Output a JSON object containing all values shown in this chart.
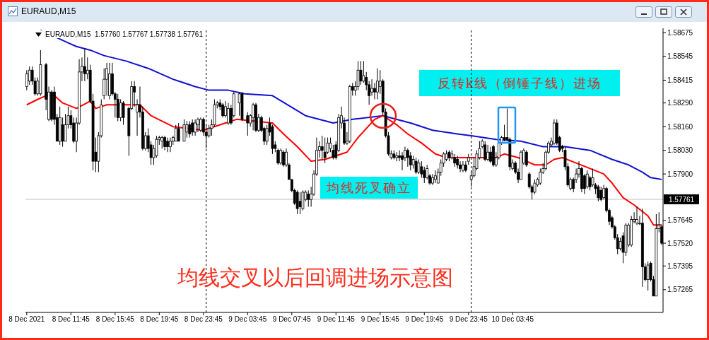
{
  "chart_data": {
    "type": "candlestick",
    "title": "EURAUD,M15  1.57760 1.57767 1.57738 1.57761",
    "color": "#000000",
    "x": [
      "2021-12-08T07:45",
      "2021-12-08T08:00",
      "2021-12-08T08:15",
      "2021-12-08T08:30",
      "2021-12-08T08:45",
      "2021-12-08T09:00",
      "2021-12-08T09:30",
      "2021-12-08T09:45",
      "2021-12-08T10:00",
      "2021-12-08T10:15",
      "2021-12-08T10:30",
      "2021-12-08T10:45",
      "2021-12-08T11:00",
      "2021-12-08T11:15",
      "2021-12-08T11:30",
      "2021-12-08T11:45",
      "2021-12-08T12:00",
      "2021-12-08T12:15",
      "2021-12-08T12:30",
      "2021-12-08T12:45",
      "2021-12-08T13:00",
      "2021-12-08T13:15",
      "2021-12-08T13:30",
      "2021-12-08T13:45",
      "2021-12-08T14:00",
      "2021-12-08T14:15",
      "2021-12-08T14:30",
      "2021-12-08T14:45",
      "2021-12-08T15:00",
      "2021-12-08T15:15",
      "2021-12-08T15:30",
      "2021-12-08T15:45",
      "2021-12-08T16:00",
      "2021-12-08T16:15",
      "2021-12-08T16:30",
      "2021-12-08T17:00",
      "2021-12-08T17:15",
      "2021-12-08T17:30",
      "2021-12-08T17:45",
      "2021-12-08T18:00",
      "2021-12-08T18:15",
      "2021-12-08T18:30",
      "2021-12-08T18:45",
      "2021-12-08T19:00",
      "2021-12-08T19:15",
      "2021-12-08T19:30",
      "2021-12-08T19:45",
      "2021-12-08T20:00",
      "2021-12-08T20:15",
      "2021-12-08T20:30",
      "2021-12-08T20:45",
      "2021-12-08T21:00",
      "2021-12-08T21:15",
      "2021-12-08T21:30",
      "2021-12-08T22:00",
      "2021-12-08T22:15",
      "2021-12-08T22:30",
      "2021-12-08T22:45",
      "2021-12-08T23:00",
      "2021-12-08T23:15",
      "2021-12-08T23:30",
      "2021-12-08T23:45",
      "2021-12-09T00:00",
      "2021-12-09T00:15",
      "2021-12-09T00:30",
      "2021-12-09T00:45",
      "2021-12-09T01:00",
      "2021-12-09T01:15",
      "2021-12-09T01:30",
      "2021-12-09T01:45",
      "2021-12-09T02:00",
      "2021-12-09T02:15",
      "2021-12-09T02:30",
      "2021-12-09T03:00",
      "2021-12-09T03:15",
      "2021-12-09T03:45",
      "2021-12-09T04:00",
      "2021-12-09T04:15",
      "2021-12-09T04:30",
      "2021-12-09T04:45",
      "2021-12-09T05:00",
      "2021-12-09T05:15",
      "2021-12-09T05:30",
      "2021-12-09T05:45",
      "2021-12-09T06:00",
      "2021-12-09T06:15",
      "2021-12-09T06:30",
      "2021-12-09T06:45",
      "2021-12-09T07:00",
      "2021-12-09T07:15",
      "2021-12-09T07:30",
      "2021-12-09T07:45",
      "2021-12-09T08:00",
      "2021-12-09T08:15",
      "2021-12-09T08:30",
      "2021-12-09T08:45",
      "2021-12-09T09:00",
      "2021-12-09T09:15",
      "2021-12-09T09:30",
      "2021-12-09T09:45",
      "2021-12-09T10:00",
      "2021-12-09T10:15",
      "2021-12-09T10:30",
      "2021-12-09T10:45",
      "2021-12-09T11:00",
      "2021-12-09T11:15",
      "2021-12-09T11:30",
      "2021-12-09T11:45",
      "2021-12-09T12:00",
      "2021-12-09T12:15",
      "2021-12-09T12:30",
      "2021-12-09T12:45",
      "2021-12-09T13:00",
      "2021-12-09T13:15",
      "2021-12-09T13:30",
      "2021-12-09T13:45",
      "2021-12-09T14:00",
      "2021-12-09T14:15",
      "2021-12-09T14:30",
      "2021-12-09T14:45",
      "2021-12-09T15:00",
      "2021-12-09T15:15",
      "2021-12-09T15:30",
      "2021-12-09T15:45",
      "2021-12-09T16:00",
      "2021-12-09T16:15",
      "2021-12-09T16:30",
      "2021-12-09T16:45",
      "2021-12-09T17:00",
      "2021-12-09T17:15",
      "2021-12-09T17:30",
      "2021-12-09T17:45",
      "2021-12-09T18:00",
      "2021-12-09T18:15",
      "2021-12-09T18:30",
      "2021-12-09T18:45",
      "2021-12-09T19:00",
      "2021-12-09T19:15",
      "2021-12-09T19:30",
      "2021-12-09T19:45",
      "2021-12-09T20:00",
      "2021-12-09T20:15",
      "2021-12-09T20:30",
      "2021-12-09T20:45",
      "2021-12-09T21:00",
      "2021-12-09T21:15",
      "2021-12-09T21:30",
      "2021-12-09T21:45",
      "2021-12-09T22:00",
      "2021-12-09T22:15",
      "2021-12-09T22:30",
      "2021-12-09T22:45",
      "2021-12-09T23:00",
      "2021-12-09T23:15",
      "2021-12-09T23:30",
      "2021-12-09T23:45",
      "2021-12-10T00:00",
      "2021-12-10T00:15",
      "2021-12-10T00:30",
      "2021-12-10T00:45",
      "2021-12-10T01:00",
      "2021-12-10T01:15",
      "2021-12-10T01:30",
      "2021-12-10T01:45",
      "2021-12-10T02:00",
      "2021-12-10T02:15",
      "2021-12-10T02:30",
      "2021-12-10T02:45",
      "2021-12-10T03:00",
      "2021-12-10T03:15",
      "2021-12-10T03:30",
      "2021-12-10T03:45",
      "2021-12-10T04:00",
      "2021-12-10T04:15",
      "2021-12-10T04:30",
      "2021-12-10T04:45",
      "2021-12-10T05:00",
      "2021-12-10T05:15",
      "2021-12-10T05:30",
      "2021-12-10T05:45",
      "2021-12-10T06:00",
      "2021-12-10T06:15",
      "2021-12-10T06:30",
      "2021-12-10T06:45",
      "2021-12-10T07:00",
      "2021-12-10T07:15",
      "2021-12-10T07:30",
      "2021-12-10T07:45",
      "2021-12-10T08:00",
      "2021-12-10T08:15",
      "2021-12-10T08:30",
      "2021-12-10T08:45",
      "2021-12-10T09:00",
      "2021-12-10T09:15",
      "2021-12-10T09:30",
      "2021-12-10T09:45",
      "2021-12-10T10:00",
      "2021-12-10T10:15",
      "2021-12-10T10:30",
      "2021-12-10T10:45",
      "2021-12-10T11:00",
      "2021-12-10T11:15",
      "2021-12-10T11:30",
      "2021-12-10T11:45",
      "2021-12-10T12:00",
      "2021-12-10T12:15",
      "2021-12-10T12:30",
      "2021-12-10T12:45",
      "2021-12-10T13:00",
      "2021-12-10T13:15",
      "2021-12-10T13:30",
      "2021-12-10T13:45",
      "2021-12-10T14:00",
      "2021-12-10T14:15",
      "2021-12-10T14:30",
      "2021-12-10T14:45",
      "2021-12-10T15:00",
      "2021-12-10T15:15",
      "2021-12-10T15:30",
      "2021-12-10T15:45",
      "2021-12-10T16:00",
      "2021-12-10T16:15",
      "2021-12-10T16:30",
      "2021-12-10T16:45",
      "2021-12-10T17:00",
      "2021-12-10T17:15"
    ],
    "ohlc": [
      [
        1.5838,
        1.5847,
        1.5836,
        1.5845
      ],
      [
        1.5841,
        1.5849,
        1.5839,
        1.5847
      ],
      [
        1.5847,
        1.5849,
        1.5839,
        1.5841
      ],
      [
        1.5841,
        1.5843,
        1.5833,
        1.5834
      ],
      [
        1.5834,
        1.5843,
        1.5833,
        1.5841
      ],
      [
        1.5834,
        1.5858,
        1.5833,
        1.585
      ],
      [
        1.585,
        1.5851,
        1.5825,
        1.5831
      ],
      [
        1.582,
        1.5838,
        1.5819,
        1.5835
      ],
      [
        1.5835,
        1.5836,
        1.5819,
        1.582
      ],
      [
        1.5835,
        1.5838,
        1.5817,
        1.582
      ],
      [
        1.5821,
        1.5823,
        1.5808,
        1.5808
      ],
      [
        1.5808,
        1.5827,
        1.5806,
        1.5821
      ],
      [
        1.5817,
        1.5821,
        1.5805,
        1.5808
      ],
      [
        1.5808,
        1.5823,
        1.5808,
        1.5817
      ],
      [
        1.5817,
        1.5827,
        1.5815,
        1.5822
      ],
      [
        1.5822,
        1.5825,
        1.5815,
        1.5817
      ],
      [
        1.5818,
        1.5821,
        1.5807,
        1.5808
      ],
      [
        1.5808,
        1.5821,
        1.5802,
        1.5818
      ],
      [
        1.5818,
        1.5853,
        1.5817,
        1.5846
      ],
      [
        1.5846,
        1.5854,
        1.5841,
        1.5849
      ],
      [
        1.5849,
        1.5859,
        1.5841,
        1.5845
      ],
      [
        1.5845,
        1.5854,
        1.5842,
        1.5847
      ],
      [
        1.5847,
        1.585,
        1.5829,
        1.583
      ],
      [
        1.583,
        1.5834,
        1.5792,
        1.5797
      ],
      [
        1.5802,
        1.581,
        1.5791,
        1.5797
      ],
      [
        1.5797,
        1.5813,
        1.5791,
        1.5811
      ],
      [
        1.5811,
        1.5831,
        1.581,
        1.5828
      ],
      [
        1.5833,
        1.5848,
        1.5831,
        1.5842
      ],
      [
        1.5842,
        1.5851,
        1.5833,
        1.5848
      ],
      [
        1.5833,
        1.5851,
        1.5831,
        1.5845
      ],
      [
        1.5845,
        1.5851,
        1.5833,
        1.5834
      ],
      [
        1.5834,
        1.5835,
        1.5821,
        1.5831
      ],
      [
        1.5831,
        1.5834,
        1.5819,
        1.5821
      ],
      [
        1.5821,
        1.5831,
        1.5819,
        1.5829
      ],
      [
        1.5829,
        1.583,
        1.5817,
        1.5821
      ],
      [
        1.5826,
        1.5827,
        1.58,
        1.5811
      ],
      [
        1.5826,
        1.5841,
        1.5825,
        1.5838
      ],
      [
        1.5838,
        1.5841,
        1.5827,
        1.5835
      ],
      [
        1.5824,
        1.5831,
        1.5811,
        1.5828
      ],
      [
        1.5828,
        1.5838,
        1.5821,
        1.5824
      ],
      [
        1.5824,
        1.5827,
        1.5803,
        1.5804
      ],
      [
        1.5804,
        1.5813,
        1.5803,
        1.5811
      ],
      [
        1.5811,
        1.5815,
        1.5802,
        1.5804
      ],
      [
        1.5806,
        1.5808,
        1.5795,
        1.5799
      ],
      [
        1.5799,
        1.5806,
        1.5795,
        1.5804
      ],
      [
        1.58,
        1.5811,
        1.5799,
        1.5809
      ],
      [
        1.5809,
        1.5811,
        1.5806,
        1.581
      ],
      [
        1.5808,
        1.5811,
        1.5804,
        1.581
      ],
      [
        1.581,
        1.5811,
        1.5803,
        1.5805
      ],
      [
        1.5808,
        1.581,
        1.5802,
        1.5805
      ],
      [
        1.5805,
        1.581,
        1.5802,
        1.5808
      ],
      [
        1.5808,
        1.5811,
        1.5806,
        1.581
      ],
      [
        1.5808,
        1.5817,
        1.5808,
        1.5815
      ],
      [
        1.5815,
        1.5818,
        1.5808,
        1.5808
      ],
      [
        1.5808,
        1.582,
        1.5808,
        1.5817
      ],
      [
        1.5813,
        1.5819,
        1.581,
        1.5817
      ],
      [
        1.5817,
        1.5819,
        1.581,
        1.5812
      ],
      [
        1.5818,
        1.582,
        1.5811,
        1.5813
      ],
      [
        1.5813,
        1.582,
        1.5811,
        1.5818
      ],
      [
        1.5817,
        1.5821,
        1.5813,
        1.582
      ],
      [
        1.5814,
        1.5821,
        1.5813,
        1.582
      ],
      [
        1.582,
        1.5821,
        1.5811,
        1.5813
      ],
      [
        1.5813,
        1.5817,
        1.5804,
        1.5811
      ],
      [
        1.5811,
        1.5817,
        1.581,
        1.5815
      ],
      [
        1.5815,
        1.582,
        1.5811,
        1.5817
      ],
      [
        1.5817,
        1.5831,
        1.5816,
        1.5828
      ],
      [
        1.5828,
        1.583,
        1.5826,
        1.5829
      ],
      [
        1.5829,
        1.5831,
        1.5825,
        1.5827
      ],
      [
        1.5828,
        1.5829,
        1.5821,
        1.5822
      ],
      [
        1.5822,
        1.583,
        1.5821,
        1.5827
      ],
      [
        1.5818,
        1.5829,
        1.5817,
        1.5826
      ],
      [
        1.5826,
        1.5828,
        1.5817,
        1.5818
      ],
      [
        1.5822,
        1.5835,
        1.5821,
        1.5834
      ],
      [
        1.5829,
        1.5835,
        1.5822,
        1.5834
      ],
      [
        1.5834,
        1.5835,
        1.5819,
        1.582
      ],
      [
        1.5822,
        1.5824,
        1.5811,
        1.5818
      ],
      [
        1.5818,
        1.5823,
        1.5816,
        1.5822
      ],
      [
        1.5821,
        1.5829,
        1.5814,
        1.5828
      ],
      [
        1.5828,
        1.5829,
        1.5813,
        1.5814
      ],
      [
        1.5814,
        1.5823,
        1.5813,
        1.5821
      ],
      [
        1.5821,
        1.5822,
        1.5813,
        1.5814
      ],
      [
        1.5815,
        1.5816,
        1.5806,
        1.5808
      ],
      [
        1.5808,
        1.5817,
        1.5806,
        1.5815
      ],
      [
        1.5818,
        1.5821,
        1.5811,
        1.5813
      ],
      [
        1.5816,
        1.5817,
        1.5801,
        1.5804
      ],
      [
        1.5806,
        1.5808,
        1.5802,
        1.5804
      ],
      [
        1.5803,
        1.5804,
        1.5795,
        1.5796
      ],
      [
        1.5796,
        1.5804,
        1.5795,
        1.5803
      ],
      [
        1.5802,
        1.5803,
        1.5794,
        1.5795
      ],
      [
        1.5795,
        1.5804,
        1.5794,
        1.5802
      ],
      [
        1.5795,
        1.5796,
        1.5787,
        1.5787
      ],
      [
        1.5787,
        1.5787,
        1.578,
        1.5781
      ],
      [
        1.5781,
        1.5782,
        1.5773,
        1.5774
      ],
      [
        1.578,
        1.5781,
        1.5768,
        1.5771
      ],
      [
        1.5775,
        1.578,
        1.5768,
        1.5772
      ],
      [
        1.5771,
        1.5781,
        1.577,
        1.578
      ],
      [
        1.5776,
        1.5781,
        1.5775,
        1.578
      ],
      [
        1.5779,
        1.5781,
        1.5772,
        1.5776
      ],
      [
        1.5776,
        1.5783,
        1.5772,
        1.5779
      ],
      [
        1.5779,
        1.5792,
        1.5778,
        1.579
      ],
      [
        1.579,
        1.581,
        1.5789,
        1.5803
      ],
      [
        1.5803,
        1.5808,
        1.5799,
        1.5805
      ],
      [
        1.5805,
        1.5811,
        1.5798,
        1.5803
      ],
      [
        1.5802,
        1.581,
        1.5796,
        1.5799
      ],
      [
        1.5802,
        1.581,
        1.5801,
        1.5807
      ],
      [
        1.5804,
        1.581,
        1.5802,
        1.5807
      ],
      [
        1.5803,
        1.5806,
        1.5798,
        1.5799
      ],
      [
        1.5806,
        1.5808,
        1.5798,
        1.5799
      ],
      [
        1.5803,
        1.5823,
        1.5802,
        1.5821
      ],
      [
        1.5818,
        1.5827,
        1.5815,
        1.5822
      ],
      [
        1.5818,
        1.5821,
        1.5806,
        1.5807
      ],
      [
        1.5807,
        1.5813,
        1.5806,
        1.5808
      ],
      [
        1.5808,
        1.5839,
        1.5807,
        1.5838
      ],
      [
        1.5838,
        1.584,
        1.5833,
        1.5836
      ],
      [
        1.5836,
        1.5841,
        1.5833,
        1.5838
      ],
      [
        1.5838,
        1.5852,
        1.5836,
        1.5847
      ],
      [
        1.5847,
        1.5852,
        1.5839,
        1.5841
      ],
      [
        1.5841,
        1.5852,
        1.584,
        1.5844
      ],
      [
        1.5843,
        1.5846,
        1.5836,
        1.5839
      ],
      [
        1.5839,
        1.5841,
        1.5828,
        1.5833
      ],
      [
        1.5835,
        1.5842,
        1.5833,
        1.5837
      ],
      [
        1.5837,
        1.584,
        1.5831,
        1.5835
      ],
      [
        1.5835,
        1.5848,
        1.5831,
        1.5841
      ],
      [
        1.5838,
        1.5847,
        1.5834,
        1.5841
      ],
      [
        1.5841,
        1.5842,
        1.5822,
        1.5824
      ],
      [
        1.5824,
        1.5826,
        1.581,
        1.5811
      ],
      [
        1.5811,
        1.5813,
        1.58,
        1.5801
      ],
      [
        1.5799,
        1.5803,
        1.5798,
        1.5801
      ],
      [
        1.5801,
        1.5803,
        1.5798,
        1.5799
      ],
      [
        1.5799,
        1.5802,
        1.5797,
        1.58
      ],
      [
        1.58,
        1.5803,
        1.5797,
        1.5799
      ],
      [
        1.58,
        1.5802,
        1.5792,
        1.5798
      ],
      [
        1.5799,
        1.5805,
        1.5797,
        1.5803
      ],
      [
        1.5803,
        1.5804,
        1.5794,
        1.5799
      ],
      [
        1.58,
        1.5802,
        1.5792,
        1.5795
      ],
      [
        1.5795,
        1.58,
        1.5793,
        1.5798
      ],
      [
        1.5797,
        1.5799,
        1.579,
        1.5791
      ],
      [
        1.5791,
        1.5798,
        1.579,
        1.5796
      ],
      [
        1.5794,
        1.5797,
        1.5788,
        1.579
      ],
      [
        1.5792,
        1.5794,
        1.5785,
        1.5788
      ],
      [
        1.5788,
        1.5795,
        1.5787,
        1.5793
      ],
      [
        1.5789,
        1.579,
        1.5784,
        1.5785
      ],
      [
        1.5785,
        1.579,
        1.5784,
        1.5788
      ],
      [
        1.5787,
        1.5792,
        1.5785,
        1.5789
      ],
      [
        1.5785,
        1.5793,
        1.5785,
        1.5791
      ],
      [
        1.5791,
        1.5798,
        1.5789,
        1.5796
      ],
      [
        1.5796,
        1.5802,
        1.5794,
        1.5801
      ],
      [
        1.5798,
        1.5803,
        1.5797,
        1.5801
      ],
      [
        1.5802,
        1.5803,
        1.5797,
        1.5799
      ],
      [
        1.5799,
        1.5803,
        1.5798,
        1.5801
      ],
      [
        1.5799,
        1.5801,
        1.5794,
        1.5796
      ],
      [
        1.5798,
        1.58,
        1.5793,
        1.5795
      ],
      [
        1.5795,
        1.5797,
        1.5791,
        1.5793
      ],
      [
        1.5792,
        1.5797,
        1.5791,
        1.5795
      ],
      [
        1.5795,
        1.5797,
        1.5791,
        1.5792
      ],
      [
        1.5797,
        1.5801,
        1.5795,
        1.5799
      ],
      [
        1.5787,
        1.5792,
        1.5783,
        1.5789
      ],
      [
        1.5789,
        1.5799,
        1.5788,
        1.5794
      ],
      [
        1.5793,
        1.5803,
        1.5792,
        1.5801
      ],
      [
        1.5799,
        1.5808,
        1.5798,
        1.5804
      ],
      [
        1.5805,
        1.5809,
        1.5804,
        1.5808
      ],
      [
        1.5806,
        1.5808,
        1.5797,
        1.5798
      ],
      [
        1.5798,
        1.5806,
        1.5797,
        1.5802
      ],
      [
        1.5802,
        1.5805,
        1.5796,
        1.5797
      ],
      [
        1.5805,
        1.5806,
        1.5794,
        1.5795
      ],
      [
        1.5795,
        1.5802,
        1.5794,
        1.5799
      ],
      [
        1.5799,
        1.5808,
        1.5798,
        1.5807
      ],
      [
        1.5807,
        1.5811,
        1.5806,
        1.581
      ],
      [
        1.581,
        1.5817,
        1.5808,
        1.5809
      ],
      [
        1.581,
        1.5826,
        1.5808,
        1.5809
      ],
      [
        1.5809,
        1.581,
        1.5792,
        1.5794
      ],
      [
        1.5793,
        1.5798,
        1.5792,
        1.5796
      ],
      [
        1.5796,
        1.5797,
        1.579,
        1.5791
      ],
      [
        1.5791,
        1.5793,
        1.5785,
        1.5787
      ],
      [
        1.5787,
        1.5803,
        1.5787,
        1.5802
      ],
      [
        1.5796,
        1.5804,
        1.5795,
        1.5803
      ],
      [
        1.5802,
        1.5803,
        1.5794,
        1.5795
      ],
      [
        1.579,
        1.5791,
        1.5782,
        1.5783
      ],
      [
        1.5783,
        1.5784,
        1.5776,
        1.578
      ],
      [
        1.578,
        1.5787,
        1.5779,
        1.5785
      ],
      [
        1.5784,
        1.5788,
        1.5783,
        1.5787
      ],
      [
        1.5785,
        1.5793,
        1.5784,
        1.5791
      ],
      [
        1.5791,
        1.5796,
        1.579,
        1.5793
      ],
      [
        1.5793,
        1.5803,
        1.5792,
        1.5802
      ],
      [
        1.5802,
        1.5808,
        1.5801,
        1.5807
      ],
      [
        1.5806,
        1.581,
        1.5805,
        1.5808
      ],
      [
        1.5807,
        1.582,
        1.5806,
        1.5818
      ],
      [
        1.5818,
        1.582,
        1.5806,
        1.5807
      ],
      [
        1.581,
        1.5811,
        1.5802,
        1.5803
      ],
      [
        1.5805,
        1.5806,
        1.5802,
        1.5804
      ],
      [
        1.5803,
        1.5805,
        1.5792,
        1.5794
      ],
      [
        1.5794,
        1.5796,
        1.5783,
        1.5784
      ],
      [
        1.5782,
        1.5788,
        1.5781,
        1.5787
      ],
      [
        1.5787,
        1.5788,
        1.578,
        1.5782
      ],
      [
        1.5787,
        1.5793,
        1.5785,
        1.579
      ],
      [
        1.579,
        1.5797,
        1.5788,
        1.5793
      ],
      [
        1.5793,
        1.5794,
        1.578,
        1.5782
      ],
      [
        1.5789,
        1.579,
        1.5779,
        1.5782
      ],
      [
        1.5783,
        1.5792,
        1.5782,
        1.579
      ],
      [
        1.5788,
        1.5789,
        1.5781,
        1.5783
      ],
      [
        1.5784,
        1.5793,
        1.5783,
        1.5788
      ],
      [
        1.5784,
        1.5785,
        1.5779,
        1.5782
      ],
      [
        1.5783,
        1.5784,
        1.5775,
        1.5777
      ],
      [
        1.5781,
        1.5783,
        1.5775,
        1.5776
      ],
      [
        1.5777,
        1.5784,
        1.5776,
        1.5782
      ],
      [
        1.5782,
        1.5783,
        1.5769,
        1.577
      ],
      [
        1.577,
        1.5771,
        1.5762,
        1.5764
      ],
      [
        1.5766,
        1.5767,
        1.576,
        1.5761
      ],
      [
        1.5761,
        1.5762,
        1.5754,
        1.5755
      ],
      [
        1.5755,
        1.5757,
        1.5746,
        1.5749
      ],
      [
        1.5749,
        1.5755,
        1.5748,
        1.5753
      ],
      [
        1.5756,
        1.5758,
        1.5741,
        1.5747
      ],
      [
        1.5747,
        1.5763,
        1.5745,
        1.5762
      ],
      [
        1.5751,
        1.5763,
        1.575,
        1.5762
      ],
      [
        1.5751,
        1.5767,
        1.575,
        1.5765
      ],
      [
        1.5764,
        1.5769,
        1.5763,
        1.5765
      ],
      [
        1.5763,
        1.5772,
        1.5762,
        1.5765
      ],
      [
        1.5763,
        1.5767,
        1.5762,
        1.5763
      ],
      [
        1.5763,
        1.5771,
        1.5728,
        1.5739
      ],
      [
        1.5739,
        1.5741,
        1.5731,
        1.5732
      ],
      [
        1.5732,
        1.5742,
        1.5726,
        1.574
      ],
      [
        1.5741,
        1.5742,
        1.5731,
        1.5732
      ],
      [
        1.5732,
        1.5734,
        1.5723,
        1.5723
      ],
      [
        1.5723,
        1.5768,
        1.5723,
        1.576
      ],
      [
        1.576,
        1.5769,
        1.5758,
        1.5762
      ],
      [
        1.5761,
        1.5762,
        1.5751,
        1.5752
      ]
    ],
    "series": [
      {
        "type": "line",
        "color": "#1010d0",
        "x": [
          "2021-12-08T09:00",
          "2021-12-08T11:30",
          "2021-12-08T12:15",
          "2021-12-08T13:30",
          "2021-12-08T14:45",
          "2021-12-08T16:45",
          "2021-12-08T18:45",
          "2021-12-08T21:00",
          "2021-12-08T23:00",
          "2021-12-09T00:15",
          "2021-12-09T02:00",
          "2021-12-09T03:30",
          "2021-12-09T06:00",
          "2021-12-09T09:00",
          "2021-12-09T11:30",
          "2021-12-09T13:15",
          "2021-12-09T16:00",
          "2021-12-09T18:30",
          "2021-12-09T20:30",
          "2021-12-09T22:45",
          "2021-12-10T00:00",
          "2021-12-10T02:15",
          "2021-12-10T04:30",
          "2021-12-10T06:30",
          "2021-12-10T08:30",
          "2021-12-10T10:45",
          "2021-12-10T12:45",
          "2021-12-10T14:15",
          "2021-12-10T15:30",
          "2021-12-10T16:15",
          "2021-12-10T17:15"
        ],
        "values": [
          1.5869,
          1.5862,
          1.586,
          1.5858,
          1.5855,
          1.5852,
          1.5848,
          1.5842,
          1.5838,
          1.5836,
          1.5836,
          1.5834,
          1.5833,
          1.5822,
          1.5818,
          1.582,
          1.5822,
          1.5818,
          1.5814,
          1.5812,
          1.5811,
          1.5809,
          1.5808,
          1.5805,
          1.5805,
          1.5803,
          1.5798,
          1.5795,
          1.5791,
          1.5788,
          1.5787
        ]
      },
      {
        "type": "line",
        "color": "#ff0000",
        "x": [
          "2021-12-08T07:45",
          "2021-12-08T08:45",
          "2021-12-08T09:30",
          "2021-12-08T10:15",
          "2021-12-08T11:00",
          "2021-12-08T12:15",
          "2021-12-08T13:30",
          "2021-12-08T14:00",
          "2021-12-08T15:00",
          "2021-12-08T16:00",
          "2021-12-08T18:00",
          "2021-12-08T19:00",
          "2021-12-08T20:00",
          "2021-12-08T21:00",
          "2021-12-08T23:45",
          "2021-12-09T01:45",
          "2021-12-09T02:45",
          "2021-12-09T06:00",
          "2021-12-09T07:00",
          "2021-12-09T08:15",
          "2021-12-09T09:30",
          "2021-12-09T10:45",
          "2021-12-09T12:45",
          "2021-12-09T13:45",
          "2021-12-09T15:15",
          "2021-12-09T16:00",
          "2021-12-09T17:15",
          "2021-12-09T18:15",
          "2021-12-09T19:30",
          "2021-12-09T20:45",
          "2021-12-09T21:45",
          "2021-12-10T00:15",
          "2021-12-10T02:15",
          "2021-12-10T03:00",
          "2021-12-10T04:15",
          "2021-12-10T05:00",
          "2021-12-10T05:45",
          "2021-12-10T06:45",
          "2021-12-10T07:30",
          "2021-12-10T08:15",
          "2021-12-10T09:30",
          "2021-12-10T10:45",
          "2021-12-10T12:00",
          "2021-12-10T12:45",
          "2021-12-10T13:45",
          "2021-12-10T14:45",
          "2021-12-10T16:00",
          "2021-12-10T16:30",
          "2021-12-10T17:15"
        ],
        "values": [
          1.5828,
          1.5831,
          1.5833,
          1.5833,
          1.5829,
          1.5826,
          1.583,
          1.5826,
          1.5828,
          null,
          1.5828,
          1.5822,
          1.5819,
          1.5816,
          1.5814,
          1.5818,
          1.582,
          1.5818,
          1.5812,
          1.5805,
          1.5797,
          1.5798,
          1.5802,
          1.581,
          1.582,
          1.5822,
          1.5817,
          1.5812,
          1.5807,
          1.5801,
          1.5799,
          1.5799,
          1.5799,
          1.5801,
          1.5799,
          1.5797,
          1.5795,
          1.5795,
          1.5798,
          1.5799,
          1.5796,
          1.5793,
          1.579,
          1.5785,
          1.5777,
          1.5773,
          1.5767,
          1.5762,
          1.5762
        ]
      }
    ],
    "xlim": [
      "2021-12-08T07:38",
      "2021-12-10T17:22"
    ],
    "ylim": [
      1.5714,
      1.587
    ],
    "xticks": [
      {
        "value": "2021-12-08T07:45",
        "label": "8 Dec 2021"
      },
      {
        "value": "2021-12-08T11:45",
        "label": "8 Dec 11:45"
      },
      {
        "value": "2021-12-08T15:45",
        "label": "8 Dec 15:45"
      },
      {
        "value": "2021-12-08T19:45",
        "label": "8 Dec 19:45"
      },
      {
        "value": "2021-12-08T23:45",
        "label": "8 Dec 23:45"
      },
      {
        "value": "2021-12-09T03:45",
        "label": "9 Dec 03:45"
      },
      {
        "value": "2021-12-09T07:45",
        "label": "9 Dec 07:45"
      },
      {
        "value": "2021-12-09T11:45",
        "label": "9 Dec 11:45"
      },
      {
        "value": "2021-12-09T15:45",
        "label": "9 Dec 15:45"
      },
      {
        "value": "2021-12-09T19:45",
        "label": "9 Dec 19:45"
      },
      {
        "value": "2021-12-09T23:45",
        "label": "9 Dec 23:45"
      },
      {
        "value": "2021-12-10T03:45",
        "label": "10 Dec 03:45"
      }
    ],
    "yticks": [
      1.58675,
      1.58545,
      1.58415,
      {
        "value": 1.5829,
        "label": "1.58290"
      },
      {
        "value": 1.5816,
        "label": "1.58160"
      },
      {
        "value": 1.5803,
        "label": "1.58030"
      },
      {
        "value": 1.579,
        "label": "1.57900"
      },
      1.57645,
      {
        "value": 1.5752,
        "label": "1.57520"
      },
      1.57395,
      1.57265
    ],
    "ref_lines": [
      {
        "axis": "x",
        "value": "2021-12-09T00:00",
        "color": "#000000",
        "line_style": "dashed"
      },
      {
        "axis": "x",
        "value": "2021-12-10T00:00",
        "color": "#000000",
        "line_style": "dashed"
      },
      {
        "axis": "y",
        "value": 1.57761,
        "label": "1.57761",
        "color": "#c0c0c0"
      }
    ],
    "annotations": [
      "EURAUD,M15",
      "均线交叉以后回调进场示意图",
      "均线死叉确立",
      "反转k线（倒锤子线）进场"
    ]
  }
}
